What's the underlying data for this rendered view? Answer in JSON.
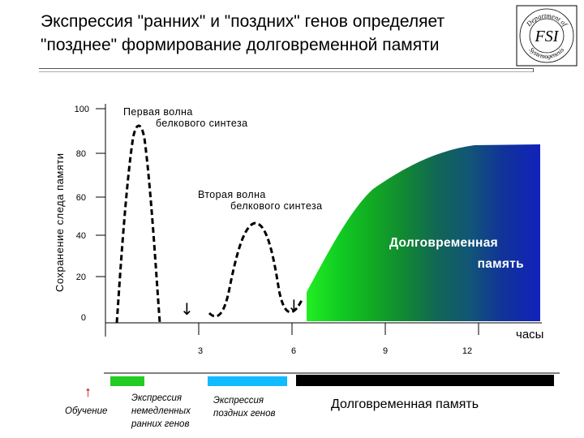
{
  "header": {
    "title_line1": "Экспрессия \"ранних\" и \"поздних\" генов определяет",
    "title_line2": "\"позднее\" формирование долговременной памяти"
  },
  "logo": {
    "text_center": "FSI",
    "ring_top": "Department of",
    "ring_bottom": "Systemogenesis"
  },
  "chart": {
    "ylabel": "Сохранение следа памяти",
    "yticks": [
      "100",
      "80",
      "60",
      "40",
      "20",
      "0"
    ],
    "xticks": [
      "3",
      "6",
      "9",
      "12"
    ],
    "xunit": "часы",
    "wave1_line1": "Первая волна",
    "wave1_line2": "белкового синтеза",
    "wave2_line1": "Вторая волна",
    "wave2_line2": "белкового синтеза",
    "ltm_line1": "Долговременная",
    "ltm_line2": "память",
    "arrow_glyph": "↓"
  },
  "timeline": {
    "learning_arrow": "↑",
    "learning": "Обучение",
    "early_line1": "Экспрессия",
    "early_line2": "немедленных",
    "early_line3": "ранних генов",
    "late_line1": "Экспрессия",
    "late_line2": "поздних генов",
    "ltm": "Долговременная память"
  },
  "colors": {
    "early_genes": "#22cc22",
    "late_genes": "#11bbff",
    "ltm_bar": "#000000",
    "ltm_gradient": [
      "#22ee22",
      "#11cc22",
      "#119922",
      "#117744",
      "#116677",
      "#115588",
      "#1133aa",
      "#1122bb"
    ]
  }
}
